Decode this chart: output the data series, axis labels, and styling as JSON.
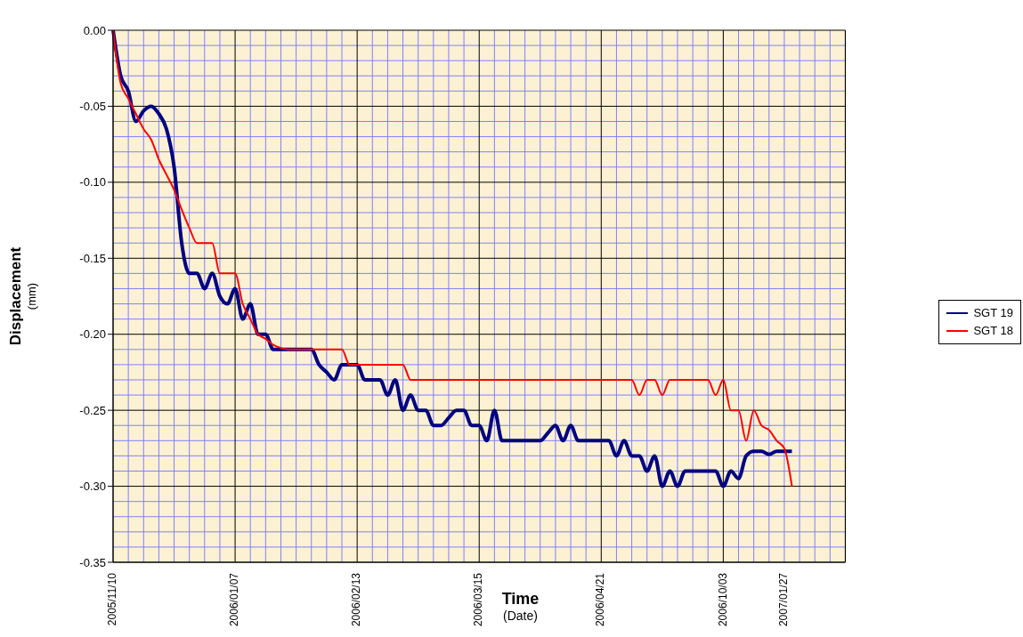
{
  "chart_data": {
    "type": "line",
    "xlabel": "Time\n(Date)",
    "ylabel": "Displacement\n(mm)",
    "categories": [
      "2005/11/10",
      null,
      null,
      null,
      null,
      null,
      null,
      null,
      null,
      null,
      null,
      null,
      null,
      null,
      null,
      null,
      "2006/01/07",
      null,
      null,
      null,
      null,
      null,
      null,
      null,
      null,
      null,
      null,
      null,
      null,
      null,
      null,
      null,
      "2006/02/13",
      null,
      null,
      null,
      null,
      null,
      null,
      null,
      null,
      null,
      null,
      null,
      null,
      null,
      null,
      null,
      "2006/03/15",
      null,
      null,
      null,
      null,
      null,
      null,
      null,
      null,
      null,
      null,
      null,
      null,
      null,
      null,
      null,
      "2006/04/21",
      null,
      null,
      null,
      null,
      null,
      null,
      null,
      null,
      null,
      null,
      null,
      null,
      null,
      null,
      null,
      "2006/10/03",
      null,
      null,
      null,
      null,
      null,
      null,
      null,
      "2007/01/27",
      null,
      null,
      null,
      null,
      null,
      null,
      null,
      null
    ],
    "series": [
      {
        "name": "SGT 19",
        "color": "#000080",
        "values": [
          0,
          -0.03,
          -0.04,
          -0.06,
          -0.053,
          -0.05,
          -0.055,
          -0.065,
          -0.09,
          -0.14,
          -0.16,
          -0.16,
          -0.17,
          -0.16,
          -0.175,
          -0.18,
          -0.17,
          -0.19,
          -0.18,
          -0.2,
          -0.2,
          -0.21,
          -0.21,
          -0.21,
          -0.21,
          -0.21,
          -0.21,
          -0.22,
          -0.225,
          -0.23,
          -0.22,
          -0.22,
          -0.22,
          -0.23,
          -0.23,
          -0.23,
          -0.24,
          -0.23,
          -0.25,
          -0.24,
          -0.25,
          -0.25,
          -0.26,
          -0.26,
          -0.255,
          -0.25,
          -0.25,
          -0.26,
          -0.26,
          -0.27,
          -0.25,
          -0.27,
          -0.27,
          -0.27,
          -0.27,
          -0.27,
          -0.27,
          -0.265,
          -0.26,
          -0.27,
          -0.26,
          -0.27,
          -0.27,
          -0.27,
          -0.27,
          -0.27,
          -0.28,
          -0.27,
          -0.28,
          -0.28,
          -0.29,
          -0.28,
          -0.3,
          -0.29,
          -0.3,
          -0.29,
          -0.29,
          -0.29,
          -0.29,
          -0.29,
          -0.3,
          -0.29,
          -0.295,
          -0.28,
          -0.277,
          -0.277,
          -0.279,
          -0.277,
          -0.277,
          -0.277,
          null,
          null,
          null,
          null,
          null,
          null,
          null
        ]
      },
      {
        "name": "SGT 18",
        "color": "#ff0000",
        "values": [
          0,
          -0.035,
          -0.045,
          -0.055,
          -0.065,
          -0.072,
          -0.085,
          -0.095,
          -0.105,
          -0.118,
          -0.13,
          -0.14,
          -0.14,
          -0.14,
          -0.16,
          -0.16,
          -0.16,
          -0.18,
          -0.19,
          -0.2,
          -0.203,
          -0.207,
          -0.209,
          -0.21,
          -0.21,
          -0.21,
          -0.21,
          -0.21,
          -0.21,
          -0.21,
          -0.21,
          -0.22,
          -0.22,
          -0.22,
          -0.22,
          -0.22,
          -0.22,
          -0.22,
          -0.22,
          -0.23,
          -0.23,
          -0.23,
          -0.23,
          -0.23,
          -0.23,
          -0.23,
          -0.23,
          -0.23,
          -0.23,
          -0.23,
          -0.23,
          -0.23,
          -0.23,
          -0.23,
          -0.23,
          -0.23,
          -0.23,
          -0.23,
          -0.23,
          -0.23,
          -0.23,
          -0.23,
          -0.23,
          -0.23,
          -0.23,
          -0.23,
          -0.23,
          -0.23,
          -0.23,
          -0.24,
          -0.23,
          -0.23,
          -0.24,
          -0.23,
          -0.23,
          -0.23,
          -0.23,
          -0.23,
          -0.23,
          -0.24,
          -0.23,
          -0.25,
          -0.25,
          -0.27,
          -0.25,
          -0.26,
          -0.263,
          -0.27,
          -0.275,
          -0.3,
          null,
          null,
          null,
          null,
          null,
          null,
          null
        ]
      }
    ],
    "ylim": [
      -0.35,
      0
    ],
    "yticks": [
      {
        "value": -0.35,
        "label": "-0.35"
      },
      {
        "value": -0.3,
        "label": "-0.30"
      },
      {
        "value": -0.25,
        "label": "-0.25"
      },
      {
        "value": -0.2,
        "label": "-0.20"
      },
      {
        "value": -0.15,
        "label": "-0.15"
      },
      {
        "value": -0.1,
        "label": "-0.10"
      },
      {
        "value": -0.05,
        "label": "-0.05"
      },
      {
        "value": 0,
        "label": "0.00"
      }
    ],
    "grid": true,
    "legend": "right"
  }
}
